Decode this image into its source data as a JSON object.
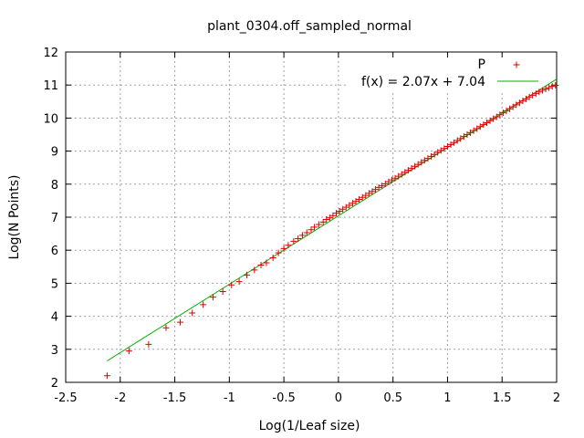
{
  "chart_data": {
    "type": "scatter",
    "title": "plant_0304.off_sampled_normal",
    "xlabel": "Log(1/Leaf size)",
    "ylabel": "Log(N Points)",
    "xlim": [
      -2.5,
      2
    ],
    "ylim": [
      2,
      12
    ],
    "xticks": [
      -2.5,
      -2,
      -1.5,
      -1,
      -0.5,
      0,
      0.5,
      1,
      1.5,
      2
    ],
    "xtick_labels": [
      "-2.5",
      "-2",
      "-1.5",
      "-1",
      "-0.5",
      "0",
      "0.5",
      "1",
      "1.5",
      "2"
    ],
    "yticks": [
      2,
      3,
      4,
      5,
      6,
      7,
      8,
      9,
      10,
      11,
      12
    ],
    "ytick_labels": [
      "2",
      "3",
      "4",
      "5",
      "6",
      "7",
      "8",
      "9",
      "10",
      "11",
      "12"
    ],
    "grid": true,
    "legend_position": "top-right",
    "series": [
      {
        "name": "P",
        "kind": "points",
        "marker": "plus",
        "color": "#e00000",
        "x": [
          -2.12,
          -1.92,
          -1.74,
          -1.58,
          -1.45,
          -1.34,
          -1.24,
          -1.15,
          -1.06,
          -0.98,
          -0.91,
          -0.84,
          -0.77,
          -0.71,
          -0.66,
          -0.6,
          -0.55,
          -0.5,
          -0.46,
          -0.41,
          -0.37,
          -0.33,
          -0.29,
          -0.25,
          -0.22,
          -0.18,
          -0.14,
          -0.11,
          -0.08,
          -0.05,
          -0.02,
          0.01,
          0.04,
          0.07,
          0.1,
          0.13,
          0.16,
          0.19,
          0.22,
          0.25,
          0.28,
          0.31,
          0.34,
          0.37,
          0.4,
          0.43,
          0.46,
          0.49,
          0.52,
          0.55,
          0.58,
          0.61,
          0.64,
          0.67,
          0.7,
          0.73,
          0.76,
          0.79,
          0.82,
          0.85,
          0.88,
          0.91,
          0.94,
          0.97,
          1.0,
          1.03,
          1.06,
          1.09,
          1.12,
          1.15,
          1.18,
          1.21,
          1.24,
          1.27,
          1.3,
          1.33,
          1.36,
          1.39,
          1.42,
          1.45,
          1.48,
          1.51,
          1.54,
          1.57,
          1.6,
          1.63,
          1.66,
          1.69,
          1.72,
          1.75,
          1.78,
          1.81,
          1.84,
          1.87,
          1.9,
          1.93,
          1.96,
          1.99
        ],
        "y": [
          2.2,
          2.95,
          3.15,
          3.65,
          3.82,
          4.1,
          4.35,
          4.58,
          4.75,
          4.95,
          5.05,
          5.25,
          5.4,
          5.55,
          5.62,
          5.77,
          5.92,
          6.05,
          6.15,
          6.27,
          6.35,
          6.45,
          6.53,
          6.62,
          6.7,
          6.78,
          6.85,
          6.93,
          6.98,
          7.05,
          7.12,
          7.18,
          7.24,
          7.3,
          7.36,
          7.42,
          7.48,
          7.54,
          7.6,
          7.66,
          7.72,
          7.78,
          7.84,
          7.9,
          7.95,
          8.01,
          8.07,
          8.13,
          8.18,
          8.24,
          8.3,
          8.36,
          8.42,
          8.48,
          8.54,
          8.6,
          8.66,
          8.72,
          8.78,
          8.84,
          8.9,
          8.96,
          9.02,
          9.08,
          9.14,
          9.2,
          9.26,
          9.32,
          9.38,
          9.44,
          9.5,
          9.56,
          9.62,
          9.68,
          9.74,
          9.8,
          9.86,
          9.92,
          9.98,
          10.04,
          10.1,
          10.16,
          10.22,
          10.28,
          10.34,
          10.4,
          10.46,
          10.52,
          10.58,
          10.64,
          10.69,
          10.74,
          10.79,
          10.84,
          10.88,
          10.92,
          10.96,
          10.99
        ]
      },
      {
        "name": "f(x) = 2.07x + 7.04",
        "kind": "line",
        "color": "#00b000",
        "slope": 2.07,
        "intercept": 7.04,
        "x_range": [
          -2.12,
          2.0
        ]
      }
    ]
  }
}
